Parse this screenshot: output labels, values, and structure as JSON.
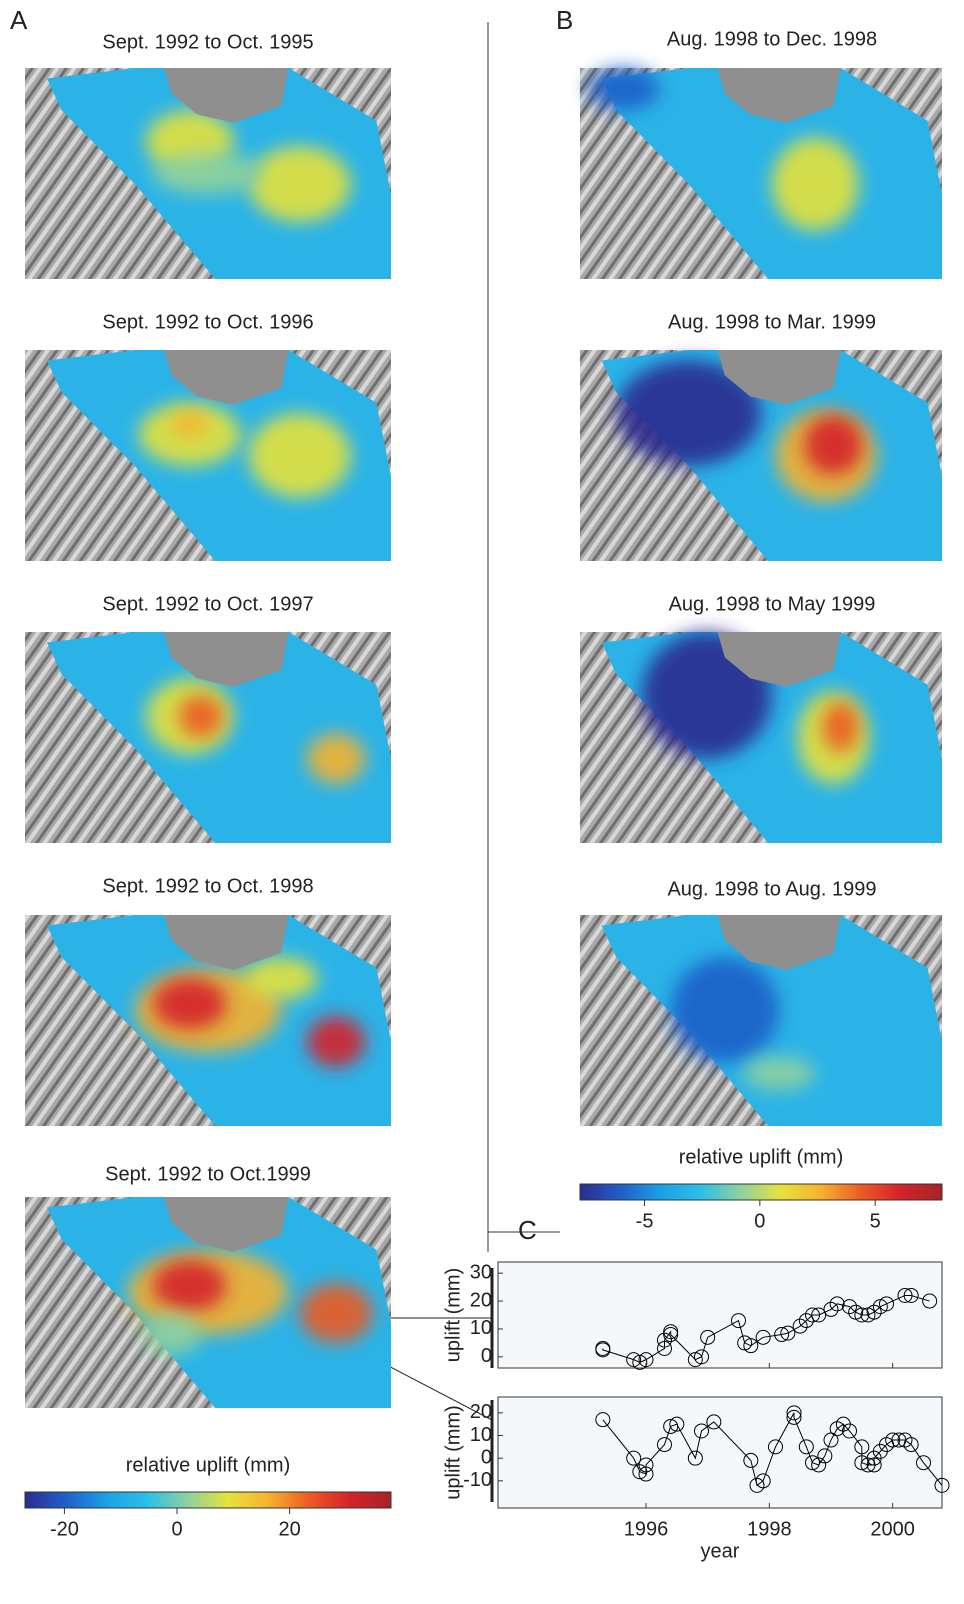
{
  "panels": [
    {
      "label": "A",
      "titles": [
        "Sept. 1992 to Oct. 1995",
        "Sept. 1992 to Oct. 1996",
        "Sept. 1992 to Oct. 1997",
        "Sept. 1992 to Oct. 1998",
        "Sept. 1992 to Oct.1999"
      ]
    },
    {
      "label": "B",
      "titles": [
        "Aug. 1998 to Dec. 1998",
        "Aug. 1998 to Mar. 1999",
        "Aug. 1998 to May 1999",
        "Aug. 1998 to Aug. 1999"
      ]
    },
    {
      "label": "C"
    }
  ],
  "chart_data": [
    {
      "type": "colorbar",
      "label": "relative uplift (mm)",
      "xlim": [
        -27,
        38
      ],
      "xticks": [
        -20,
        0,
        20
      ],
      "colors": [
        "#2b2c8f",
        "#1f5fc8",
        "#1ba0e6",
        "#2bbfe8",
        "#8fd19e",
        "#e6e23a",
        "#f5b22f",
        "#ec5a24",
        "#d4222a",
        "#a3242a"
      ]
    },
    {
      "type": "colorbar",
      "label": "relative uplift (mm)",
      "xlim": [
        -7.8,
        7.9
      ],
      "xticks": [
        -5,
        0,
        5
      ],
      "colors": [
        "#2b2c8f",
        "#1f5fc8",
        "#1ba0e6",
        "#2bbfe8",
        "#8fd19e",
        "#e6e23a",
        "#f5b22f",
        "#ec5a24",
        "#d4222a",
        "#a3242a"
      ]
    },
    {
      "type": "line",
      "ylabel": "uplift (mm)",
      "xlim": [
        1993.6,
        2000.8
      ],
      "xticks": [
        1996,
        1998,
        2000
      ],
      "ylim": [
        -4,
        34
      ],
      "yticks": [
        0,
        10,
        20,
        30
      ],
      "x": [
        1995.3,
        1995.3,
        1995.8,
        1995.9,
        1996.0,
        1996.3,
        1996.3,
        1996.4,
        1996.4,
        1996.8,
        1996.9,
        1997.0,
        1997.5,
        1997.6,
        1997.7,
        1997.9,
        1998.2,
        1998.3,
        1998.5,
        1998.6,
        1998.7,
        1998.8,
        1999.0,
        1999.1,
        1999.3,
        1999.4,
        1999.5,
        1999.6,
        1999.7,
        1999.8,
        1999.9,
        2000.2,
        2000.3,
        2000.6
      ],
      "series": [
        {
          "color": "#000000",
          "values": [
            3,
            2.5,
            -1,
            -2,
            -1,
            3,
            6,
            9,
            8,
            -1,
            0,
            7,
            13,
            5,
            4,
            7,
            8,
            8.5,
            11,
            13,
            15,
            15,
            17,
            19,
            18,
            16,
            15,
            15,
            16,
            18,
            19,
            22,
            22,
            20
          ]
        }
      ]
    },
    {
      "type": "line",
      "ylabel": "uplift (mm)",
      "xlabel": "year",
      "xlim": [
        1993.6,
        2000.8
      ],
      "xticks": [
        1996,
        1998,
        2000
      ],
      "ylim": [
        -22,
        27
      ],
      "yticks": [
        -10,
        0,
        10,
        20
      ],
      "x": [
        1995.3,
        1995.8,
        1995.9,
        1996.0,
        1996.0,
        1996.3,
        1996.4,
        1996.5,
        1996.8,
        1996.9,
        1997.1,
        1997.7,
        1997.8,
        1997.9,
        1998.1,
        1998.4,
        1998.4,
        1998.6,
        1998.7,
        1998.8,
        1998.9,
        1999.0,
        1999.1,
        1999.2,
        1999.3,
        1999.5,
        1999.5,
        1999.6,
        1999.7,
        1999.7,
        1999.8,
        1999.9,
        2000.0,
        2000.1,
        2000.2,
        2000.3,
        2000.5,
        2000.8
      ],
      "series": [
        {
          "color": "#000000",
          "values": [
            17,
            0,
            -6,
            -7,
            -3,
            6,
            14,
            15,
            0,
            12,
            16,
            -1,
            -12,
            -10,
            5,
            20,
            18,
            5,
            -2,
            -3,
            1,
            8,
            13,
            15,
            12,
            5,
            -2,
            -3,
            -3,
            0,
            3,
            6,
            8,
            8,
            8,
            6,
            -2,
            -12
          ]
        }
      ]
    }
  ]
}
